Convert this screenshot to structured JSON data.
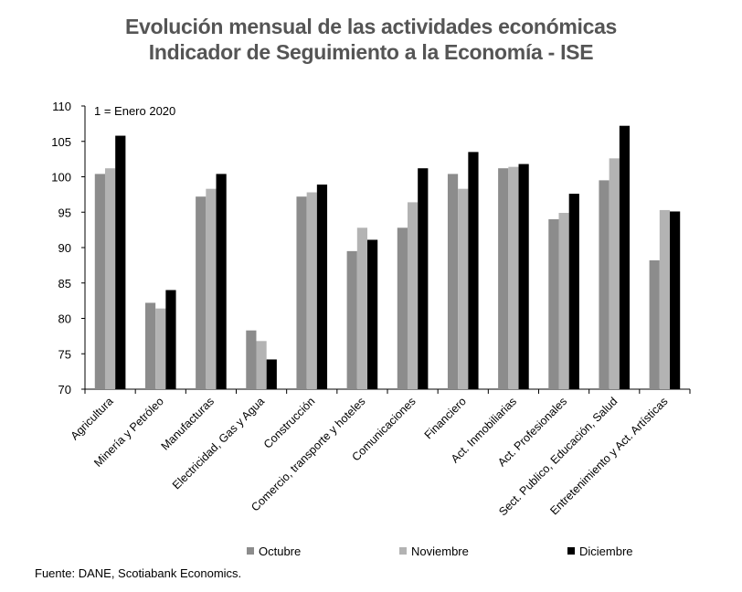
{
  "chart_data": {
    "type": "bar",
    "title": "Evolución mensual de las actividades económicas",
    "subtitle": "Indicador de Seguimiento a la Economía - ISE",
    "annotation": "1 = Enero 2020",
    "source": "Fuente: DANE, Scotiabank Economics.",
    "ylim": [
      70,
      110
    ],
    "yticks": [
      70,
      75,
      80,
      85,
      90,
      95,
      100,
      105,
      110
    ],
    "categories": [
      "Agricultura",
      "Minería y Petróleo",
      "Manufacturas",
      "Electricidad, Gas y Agua",
      "Construcción",
      "Comercio, transporte y hoteles",
      "Comunicaciones",
      "Financiero",
      "Act. Inmobiliarias",
      "Act. Profesionales",
      "Sect. Publico, Educación, Salud",
      "Entretenimiento y Act. Artísticas"
    ],
    "series": [
      {
        "name": "Octubre",
        "color": "#8c8c8c",
        "values": [
          100.4,
          82.2,
          97.2,
          78.3,
          97.2,
          89.5,
          92.8,
          100.4,
          101.2,
          94.0,
          99.5,
          88.2
        ]
      },
      {
        "name": "Noviembre",
        "color": "#b3b3b3",
        "values": [
          101.2,
          81.4,
          98.3,
          76.8,
          97.8,
          92.8,
          96.4,
          98.3,
          101.4,
          94.9,
          102.6,
          95.3
        ]
      },
      {
        "name": "Diciembre",
        "color": "#000000",
        "values": [
          105.8,
          84.0,
          100.4,
          74.2,
          98.9,
          91.1,
          101.2,
          103.5,
          101.8,
          97.6,
          107.2,
          95.1
        ]
      }
    ],
    "legend_position": "bottom",
    "grid": false
  }
}
